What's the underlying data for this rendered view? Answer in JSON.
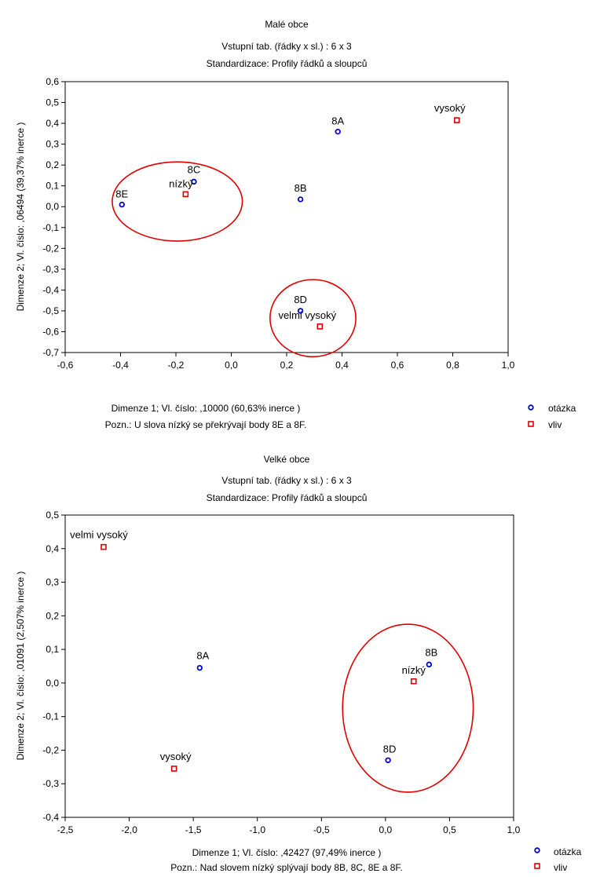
{
  "chart_data": [
    {
      "type": "scatter",
      "title": "Malé obce",
      "subtitle1": "Vstupní tab. (řádky x sl.) : 6 x 3",
      "subtitle2": "Standardizace:  Profily řádků a sloupců",
      "xlabel": "Dimenze  1; Vl. číslo: ,10000 (60,63% inerce   )",
      "ylabel": "Dimenze  2; Vl. číslo: ,06494 (39,37% inerce   )",
      "note": "Pozn.: U slova nízký se překrývají body 8E a 8F.",
      "xlim": [
        -0.6,
        1.0
      ],
      "ylim": [
        -0.7,
        0.6
      ],
      "xticks": [
        "-0,6",
        "-0,4",
        "-0,2",
        "0,0",
        "0,2",
        "0,4",
        "0,6",
        "0,8",
        "1,0"
      ],
      "xtick_values": [
        -0.6,
        -0.4,
        -0.2,
        0.0,
        0.2,
        0.4,
        0.6,
        0.8,
        1.0
      ],
      "yticks": [
        "0,6",
        "0,5",
        "0,4",
        "0,3",
        "0,2",
        "0,1",
        "0,0",
        "-0,1",
        "-0,2",
        "-0,3",
        "-0,4",
        "-0,5",
        "-0,6",
        "-0,7"
      ],
      "ytick_values": [
        0.6,
        0.5,
        0.4,
        0.3,
        0.2,
        0.1,
        0.0,
        -0.1,
        -0.2,
        -0.3,
        -0.4,
        -0.5,
        -0.6,
        -0.7
      ],
      "grid": false,
      "legend_position": "bottom-right",
      "series": [
        {
          "name": "otázka",
          "marker": "circle",
          "color": "#0000cc",
          "points": [
            {
              "label": "8A",
              "x": 0.385,
              "y": 0.36
            },
            {
              "label": "8B",
              "x": 0.25,
              "y": 0.035
            },
            {
              "label": "8C",
              "x": -0.135,
              "y": 0.12
            },
            {
              "label": "8D",
              "x": 0.25,
              "y": -0.5
            },
            {
              "label": "8E",
              "x": -0.395,
              "y": 0.01
            }
          ]
        },
        {
          "name": "vliv",
          "marker": "square",
          "color": "#e00000",
          "points": [
            {
              "label": "vysoký",
              "x": 0.815,
              "y": 0.415
            },
            {
              "label": "nízký",
              "x": -0.165,
              "y": 0.06
            },
            {
              "label": "velmi vysoký",
              "x": 0.32,
              "y": -0.575
            }
          ]
        }
      ],
      "annotations": [
        {
          "shape": "ellipse",
          "cx": -0.195,
          "cy": 0.025,
          "rx": 0.235,
          "ry": 0.19,
          "color": "#e00000"
        },
        {
          "shape": "ellipse",
          "cx": 0.295,
          "cy": -0.535,
          "rx": 0.155,
          "ry": 0.185,
          "color": "#e00000"
        }
      ]
    },
    {
      "type": "scatter",
      "title": "Velké obce",
      "subtitle1": "Vstupní tab. (řádky x sl.) : 6 x 3",
      "subtitle2": "Standardizace:  Profily řádků a sloupců",
      "xlabel": "Dimenze  1; Vl. číslo: ,42427 (97,49% inerce   )",
      "ylabel": "Dimenze  2; Vl. číslo: ,01091 (2,507% inerce   )",
      "note": "Pozn.: Nad slovem nízký splývají body 8B, 8C, 8E a 8F.",
      "xlim": [
        -2.5,
        1.0
      ],
      "ylim": [
        -0.4,
        0.5
      ],
      "xticks": [
        "-2,5",
        "-2,0",
        "-1,5",
        "-1,0",
        "-0,5",
        "0,0",
        "0,5",
        "1,0"
      ],
      "xtick_values": [
        -2.5,
        -2.0,
        -1.5,
        -1.0,
        -0.5,
        0.0,
        0.5,
        1.0
      ],
      "yticks": [
        "0,5",
        "0,4",
        "0,3",
        "0,2",
        "0,1",
        "0,0",
        "-0,1",
        "-0,2",
        "-0,3",
        "-0,4"
      ],
      "ytick_values": [
        0.5,
        0.4,
        0.3,
        0.2,
        0.1,
        0.0,
        -0.1,
        -0.2,
        -0.3,
        -0.4
      ],
      "grid": false,
      "legend_position": "bottom-right",
      "series": [
        {
          "name": "otázka",
          "marker": "circle",
          "color": "#0000cc",
          "points": [
            {
              "label": "8A",
              "x": -1.45,
              "y": 0.045
            },
            {
              "label": "8B",
              "x": 0.34,
              "y": 0.055
            },
            {
              "label": "8D",
              "x": 0.02,
              "y": -0.23
            }
          ]
        },
        {
          "name": "vliv",
          "marker": "square",
          "color": "#e00000",
          "points": [
            {
              "label": "velmi vysoký",
              "x": -2.2,
              "y": 0.405
            },
            {
              "label": "vysoký",
              "x": -1.65,
              "y": -0.255
            },
            {
              "label": "nízký",
              "x": 0.22,
              "y": 0.005
            }
          ]
        }
      ],
      "annotations": [
        {
          "shape": "ellipse",
          "cx": 0.175,
          "cy": -0.075,
          "rx": 0.51,
          "ry": 0.25,
          "color": "#e00000"
        }
      ]
    }
  ]
}
